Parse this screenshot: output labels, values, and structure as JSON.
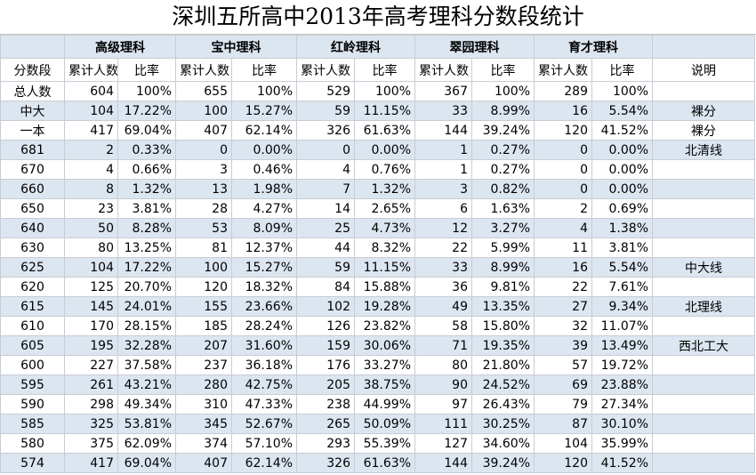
{
  "header": {
    "title": "深圳五所高中2013年高考理科分数段统计"
  },
  "table": {
    "groups": [
      "高级理科",
      "宝中理科",
      "红岭理科",
      "翠园理科",
      "育才理科"
    ],
    "subheader": [
      "分数段",
      "累计人数",
      "比率",
      "累计人数",
      "比率",
      "累计人数",
      "比率",
      "累计人数",
      "比率",
      "累计人数",
      "比率",
      "说明"
    ],
    "rows": [
      {
        "label": "总人数",
        "cells": [
          "604",
          "100%",
          "655",
          "100%",
          "529",
          "100%",
          "367",
          "100%",
          "289",
          "100%"
        ]
      },
      {
        "label": "中大",
        "cells": [
          "104",
          "17.22%",
          "100",
          "15.27%",
          "59",
          "11.15%",
          "33",
          "8.99%",
          "16",
          "5.54%"
        ],
        "note": "裸分"
      },
      {
        "label": "一本",
        "cells": [
          "417",
          "69.04%",
          "407",
          "62.14%",
          "326",
          "61.63%",
          "144",
          "39.24%",
          "120",
          "41.52%"
        ],
        "note": "裸分"
      },
      {
        "label": "681",
        "cells": [
          "2",
          "0.33%",
          "0",
          "0.00%",
          "0",
          "0.00%",
          "1",
          "0.27%",
          "0",
          "0.00%"
        ],
        "note": "北清线"
      },
      {
        "label": "670",
        "cells": [
          "4",
          "0.66%",
          "3",
          "0.46%",
          "4",
          "0.76%",
          "1",
          "0.27%",
          "0",
          "0.00%"
        ]
      },
      {
        "label": "660",
        "cells": [
          "8",
          "1.32%",
          "13",
          "1.98%",
          "7",
          "1.32%",
          "3",
          "0.82%",
          "0",
          "0.00%"
        ]
      },
      {
        "label": "650",
        "cells": [
          "23",
          "3.81%",
          "28",
          "4.27%",
          "14",
          "2.65%",
          "6",
          "1.63%",
          "2",
          "0.69%"
        ]
      },
      {
        "label": "640",
        "cells": [
          "50",
          "8.28%",
          "53",
          "8.09%",
          "25",
          "4.73%",
          "12",
          "3.27%",
          "4",
          "1.38%"
        ]
      },
      {
        "label": "630",
        "cells": [
          "80",
          "13.25%",
          "81",
          "12.37%",
          "44",
          "8.32%",
          "22",
          "5.99%",
          "11",
          "3.81%"
        ]
      },
      {
        "label": "625",
        "cells": [
          "104",
          "17.22%",
          "100",
          "15.27%",
          "59",
          "11.15%",
          "33",
          "8.99%",
          "16",
          "5.54%"
        ],
        "note": "中大线"
      },
      {
        "label": "620",
        "cells": [
          "125",
          "20.70%",
          "120",
          "18.32%",
          "84",
          "15.88%",
          "36",
          "9.81%",
          "22",
          "7.61%"
        ]
      },
      {
        "label": "615",
        "cells": [
          "145",
          "24.01%",
          "155",
          "23.66%",
          "102",
          "19.28%",
          "49",
          "13.35%",
          "27",
          "9.34%"
        ],
        "note": "北理线"
      },
      {
        "label": "610",
        "cells": [
          "170",
          "28.15%",
          "185",
          "28.24%",
          "126",
          "23.82%",
          "58",
          "15.80%",
          "32",
          "11.07%"
        ]
      },
      {
        "label": "605",
        "cells": [
          "195",
          "32.28%",
          "207",
          "31.60%",
          "159",
          "30.06%",
          "71",
          "19.35%",
          "39",
          "13.49%"
        ],
        "note": "西北工大"
      },
      {
        "label": "600",
        "cells": [
          "227",
          "37.58%",
          "237",
          "36.18%",
          "176",
          "33.27%",
          "80",
          "21.80%",
          "57",
          "19.72%"
        ]
      },
      {
        "label": "595",
        "cells": [
          "261",
          "43.21%",
          "280",
          "42.75%",
          "205",
          "38.75%",
          "90",
          "24.52%",
          "69",
          "23.88%"
        ]
      },
      {
        "label": "590",
        "cells": [
          "298",
          "49.34%",
          "310",
          "47.33%",
          "238",
          "44.99%",
          "97",
          "26.43%",
          "79",
          "27.34%"
        ]
      },
      {
        "label": "585",
        "cells": [
          "325",
          "53.81%",
          "345",
          "52.67%",
          "265",
          "50.09%",
          "111",
          "30.25%",
          "87",
          "30.10%"
        ]
      },
      {
        "label": "580",
        "cells": [
          "375",
          "62.09%",
          "374",
          "57.10%",
          "293",
          "55.39%",
          "127",
          "34.60%",
          "104",
          "35.99%"
        ]
      },
      {
        "label": "574",
        "cells": [
          "417",
          "69.04%",
          "407",
          "62.14%",
          "326",
          "61.63%",
          "144",
          "39.24%",
          "120",
          "41.52%"
        ]
      }
    ]
  }
}
